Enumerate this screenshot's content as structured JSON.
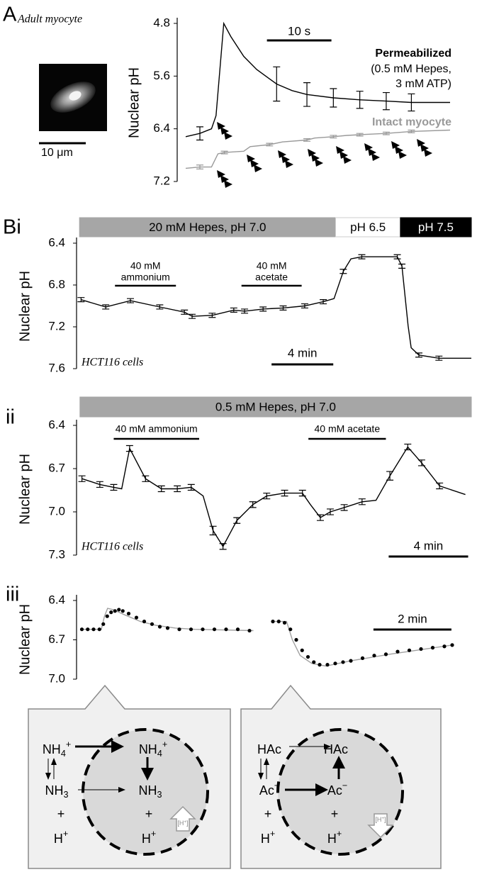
{
  "chart_data": [
    {
      "type": "line",
      "panel_label": "A",
      "subtitle": "Adult myocyte",
      "image_scale_bar": "10 μm",
      "y_label": "Nuclear pH",
      "ylim": [
        4.8,
        7.2
      ],
      "y_reversed": true,
      "yticks": [
        4.8,
        5.6,
        6.4,
        7.2
      ],
      "xlim": [
        0,
        41
      ],
      "scale_bar": {
        "label": "10 s",
        "length": 10
      },
      "series": [
        {
          "name": "Permeabilized",
          "note": [
            "(0.5 mM Hepes,",
            "3 mM ATP)"
          ],
          "color": "#000000",
          "x": [
            0,
            2.2,
            4,
            4.7,
            5.9,
            7,
            9,
            11,
            14.1,
            16.5,
            18.8,
            22.9,
            27,
            31.1,
            35,
            41
          ],
          "values": [
            6.52,
            6.47,
            6.4,
            6.2,
            4.8,
            5.0,
            5.3,
            5.5,
            5.72,
            5.82,
            5.88,
            5.93,
            5.96,
            5.98,
            6.0,
            6.0
          ],
          "errors": [
            null,
            0.1,
            null,
            null,
            null,
            null,
            null,
            null,
            0.26,
            null,
            0.18,
            0.14,
            0.13,
            0.13,
            0.13,
            null
          ]
        },
        {
          "name": "Intact myocyte",
          "color": "#999999",
          "x": [
            0,
            2.2,
            4,
            5,
            6,
            9,
            10,
            13,
            15,
            18.8,
            20,
            22.9,
            25,
            27,
            31.1,
            35,
            41
          ],
          "values": [
            7.0,
            6.98,
            6.98,
            6.78,
            6.76,
            6.74,
            6.67,
            6.64,
            6.6,
            6.57,
            6.54,
            6.52,
            6.5,
            6.49,
            6.47,
            6.44,
            6.42
          ],
          "errors": [
            null,
            0.03,
            null,
            null,
            0.02,
            null,
            null,
            0.02,
            null,
            0.02,
            null,
            0.02,
            null,
            0.02,
            0.02,
            0.02,
            null
          ]
        }
      ]
    },
    {
      "type": "line",
      "panel_label": "Bi",
      "y_label": "Nuclear pH",
      "cell_label": "HCT116 cells",
      "ylim": [
        6.4,
        7.6
      ],
      "y_reversed": true,
      "yticks": [
        6.4,
        6.8,
        7.2,
        7.6
      ],
      "xlim": [
        0,
        25.5
      ],
      "scale_bar": {
        "label": "4 min",
        "length": 4
      },
      "headers": [
        {
          "label": "20 mM Hepes, pH 7.0",
          "x": [
            0.1,
            16.7
          ],
          "color": "#a6a6a6",
          "text_color": "#000000"
        },
        {
          "label": "pH 6.5",
          "x": [
            16.7,
            20.9
          ],
          "color": "#ffffff",
          "text_color": "#000000"
        },
        {
          "label": "pH 7.5",
          "x": [
            20.9,
            25.5
          ],
          "color": "#000000",
          "text_color": "#ffffff"
        }
      ],
      "annotations": [
        {
          "label": [
            "40 mM",
            "ammonium"
          ],
          "x": [
            2.4,
            6.35
          ]
        },
        {
          "label": [
            "40 mM",
            "acetate"
          ],
          "x": [
            10.6,
            14.5
          ]
        }
      ],
      "series": [
        {
          "color": "#000000",
          "x": [
            0.2,
            1.8,
            3.4,
            5.3,
            6.9,
            7.4,
            8.7,
            10.1,
            10.8,
            12,
            13.3,
            14.7,
            15.9,
            16.6,
            17.2,
            17.7,
            18.4,
            20.7,
            21.0,
            21.4,
            21.6,
            22.1,
            23.4,
            25.5
          ],
          "values": [
            6.94,
            7.01,
            6.95,
            7.01,
            7.06,
            7.1,
            7.09,
            7.04,
            7.05,
            7.03,
            7.02,
            7.0,
            6.96,
            6.93,
            6.67,
            6.55,
            6.53,
            6.53,
            6.62,
            7.19,
            7.4,
            7.47,
            7.5,
            7.5
          ],
          "errors": [
            0.02,
            0.02,
            0.02,
            0.02,
            0.02,
            0.02,
            0.02,
            0.02,
            0.02,
            0.02,
            0.02,
            0.02,
            0.02,
            null,
            0.02,
            null,
            0.02,
            0.02,
            0.02,
            null,
            null,
            0.02,
            0.02,
            null
          ]
        }
      ]
    },
    {
      "type": "line",
      "panel_label": "ii",
      "y_label": "Nuclear pH",
      "cell_label": "HCT116 cells",
      "ylim": [
        6.4,
        7.3
      ],
      "y_reversed": true,
      "yticks": [
        6.4,
        6.7,
        {
          "value": 7,
          "label": "7.0"
        },
        7.3
      ],
      "xlim": [
        0,
        19.8
      ],
      "scale_bar": {
        "label": "4 min",
        "length": 4
      },
      "headers": [
        {
          "label": "0.5 mM Hepes, pH 7.0",
          "x": [
            0.1,
            19.8
          ],
          "color": "#a6a6a6",
          "text_color": "#000000"
        }
      ],
      "annotations": [
        {
          "label": [
            "40 mM ammonium"
          ],
          "x": [
            1.8,
            6.1
          ]
        },
        {
          "label": [
            "40 mM acetate"
          ],
          "x": [
            11.6,
            15.5
          ]
        }
      ],
      "series": [
        {
          "color": "#000000",
          "x": [
            0.2,
            1.1,
            1.8,
            2.2,
            2.6,
            3.4,
            4.2,
            5.0,
            5.7,
            6.3,
            6.8,
            7.3,
            8.0,
            8.8,
            9.5,
            10.4,
            11.3,
            11.7,
            12.2,
            12.7,
            13.4,
            14.3,
            15.0,
            15.7,
            16.6,
            17.3,
            18.2,
            19.5
          ],
          "values": [
            6.77,
            6.81,
            6.83,
            6.84,
            6.56,
            6.77,
            6.84,
            6.84,
            6.83,
            6.89,
            7.13,
            7.24,
            7.06,
            6.95,
            6.89,
            6.87,
            6.87,
            6.95,
            7.04,
            7.0,
            6.97,
            6.93,
            6.92,
            6.75,
            6.55,
            6.66,
            6.82,
            6.88
          ],
          "errors": [
            0.02,
            0.02,
            0.02,
            null,
            0.02,
            0.02,
            0.02,
            0.02,
            0.02,
            null,
            0.03,
            0.02,
            0.02,
            0.02,
            0.02,
            0.02,
            0.02,
            null,
            0.02,
            0.02,
            0.02,
            0.02,
            null,
            0.03,
            0.02,
            0.02,
            0.02,
            null
          ]
        }
      ]
    },
    {
      "type": "line",
      "panel_label": "iii",
      "y_label": "Nuclear pH",
      "ylim": [
        6.4,
        7.0
      ],
      "y_reversed": true,
      "yticks": [
        6.4,
        6.7,
        {
          "value": 7,
          "label": "7.0"
        }
      ],
      "xlim": [
        0,
        9.6
      ],
      "scale_bar": {
        "label": "2 min",
        "length": 2
      },
      "series": [
        {
          "mode": "line",
          "color": "#a0a0a0",
          "x": [
            0.1,
            0.6,
            0.68,
            0.76,
            0.9,
            1.2,
            1.6,
            2.0,
            2.5,
            3.0,
            4.5,
            4.75,
            5.0,
            5.35,
            5.5,
            5.7,
            6.0,
            6.36,
            7.0,
            8.0,
            9.6
          ],
          "values": [
            6.62,
            6.62,
            6.52,
            6.46,
            6.47,
            6.51,
            6.56,
            6.59,
            6.61,
            6.62,
            6.63,
            null,
            6.56,
            6.56,
            6.7,
            6.82,
            6.88,
            6.9,
            6.86,
            6.81,
            6.74
          ]
        },
        {
          "mode": "markers",
          "color": "#000000",
          "x": [
            0.1,
            0.25,
            0.4,
            0.55,
            0.65,
            0.75,
            0.85,
            0.95,
            1.05,
            1.15,
            1.3,
            1.5,
            1.7,
            1.9,
            2.1,
            2.3,
            2.6,
            2.9,
            3.2,
            3.5,
            3.8,
            4.1,
            4.4,
            5.0,
            5.15,
            5.3,
            5.45,
            5.6,
            5.75,
            5.9,
            6.05,
            6.2,
            6.4,
            6.6,
            6.8,
            7.0,
            7.3,
            7.6,
            7.9,
            8.2,
            8.5,
            8.8,
            9.1,
            9.4,
            9.6
          ],
          "values": [
            6.62,
            6.62,
            6.62,
            6.62,
            6.58,
            6.52,
            6.49,
            6.48,
            6.47,
            6.48,
            6.5,
            6.53,
            6.56,
            6.58,
            6.6,
            6.61,
            6.62,
            6.62,
            6.62,
            6.62,
            6.62,
            6.62,
            6.63,
            6.56,
            6.56,
            6.57,
            6.62,
            6.7,
            6.78,
            6.83,
            6.87,
            6.89,
            6.89,
            6.88,
            6.87,
            6.86,
            6.84,
            6.82,
            6.81,
            6.79,
            6.78,
            6.77,
            6.76,
            6.75,
            6.74
          ]
        }
      ]
    }
  ],
  "diagrams": [
    {
      "labels": [
        [
          {
            "text": "NH"
          },
          {
            "text": "4",
            "script": "sub"
          },
          {
            "text": "+",
            "script": "sup"
          }
        ],
        [
          {
            "text": "NH"
          },
          {
            "text": "4",
            "script": "sub"
          },
          {
            "text": "+",
            "script": "sup"
          }
        ],
        [
          {
            "text": "NH"
          },
          {
            "text": "3",
            "script": "sub"
          }
        ],
        [
          {
            "text": "NH"
          },
          {
            "text": "3",
            "script": "sub"
          }
        ],
        [
          {
            "text": "+"
          }
        ],
        [
          {
            "text": "+"
          }
        ],
        [
          {
            "text": "H"
          },
          {
            "text": "+",
            "script": "sup"
          }
        ],
        [
          {
            "text": "H"
          },
          {
            "text": "+",
            "script": "sup"
          }
        ],
        [
          {
            "text": "[H"
          },
          {
            "text": "+",
            "script": "sup"
          },
          {
            "text": "]"
          }
        ]
      ]
    },
    {
      "labels": [
        [
          {
            "text": "HAc"
          }
        ],
        [
          {
            "text": "HAc"
          }
        ],
        [
          {
            "text": "Ac"
          },
          {
            "text": "−",
            "script": "sup"
          }
        ],
        [
          {
            "text": "Ac"
          },
          {
            "text": "−",
            "script": "sup"
          }
        ],
        [
          {
            "text": "+"
          }
        ],
        [
          {
            "text": "+"
          }
        ],
        [
          {
            "text": "H"
          },
          {
            "text": "+",
            "script": "sup"
          }
        ],
        [
          {
            "text": "H"
          },
          {
            "text": "+",
            "script": "sup"
          }
        ],
        [
          {
            "text": "[H"
          },
          {
            "text": "+",
            "script": "sup"
          },
          {
            "text": "]"
          }
        ]
      ]
    }
  ]
}
